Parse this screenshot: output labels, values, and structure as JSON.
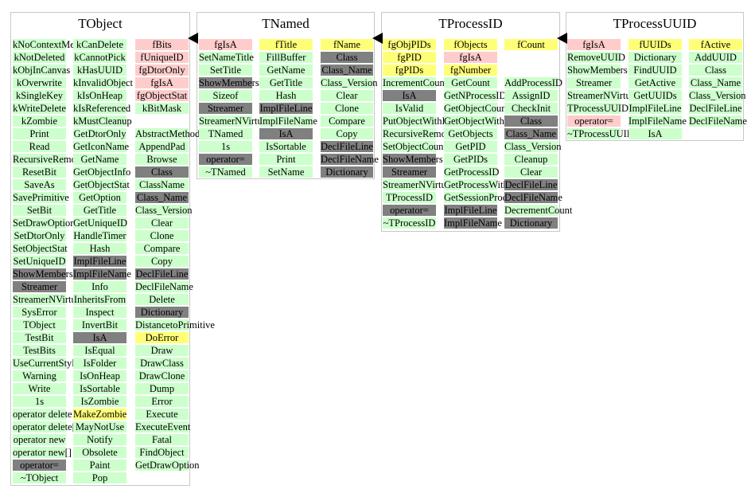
{
  "classes": [
    {
      "name": "TObject",
      "columns": [
        [
          {
            "t": "kNoContextMenu",
            "k": "method"
          },
          {
            "t": "kNotDeleted",
            "k": "method"
          },
          {
            "t": "kObjInCanvas",
            "k": "method"
          },
          {
            "t": "kOverwrite",
            "k": "method"
          },
          {
            "t": "kSingleKey",
            "k": "method"
          },
          {
            "t": "kWriteDelete",
            "k": "method"
          },
          {
            "t": "kZombie",
            "k": "method"
          },
          {
            "t": "Print",
            "k": "method"
          },
          {
            "t": "Read",
            "k": "method"
          },
          {
            "t": "RecursiveRemove",
            "k": "method"
          },
          {
            "t": "ResetBit",
            "k": "method"
          },
          {
            "t": "SaveAs",
            "k": "method"
          },
          {
            "t": "SavePrimitive",
            "k": "method"
          },
          {
            "t": "SetBit",
            "k": "method"
          },
          {
            "t": "SetDrawOption",
            "k": "method"
          },
          {
            "t": "SetDtorOnly",
            "k": "method"
          },
          {
            "t": "SetObjectStat",
            "k": "method"
          },
          {
            "t": "SetUniqueID",
            "k": "method"
          },
          {
            "t": "ShowMembers",
            "k": "inherit"
          },
          {
            "t": "Streamer",
            "k": "inherit"
          },
          {
            "t": "StreamerNVirtual",
            "k": "method"
          },
          {
            "t": "SysError",
            "k": "method"
          },
          {
            "t": "TObject",
            "k": "method"
          },
          {
            "t": "TestBit",
            "k": "method"
          },
          {
            "t": "TestBits",
            "k": "method"
          },
          {
            "t": "UseCurrentStyle",
            "k": "method"
          },
          {
            "t": "Warning",
            "k": "method"
          },
          {
            "t": "Write",
            "k": "method"
          },
          {
            "t": "1s",
            "k": "method"
          },
          {
            "t": "operator delete",
            "k": "method"
          },
          {
            "t": "operator delete[]",
            "k": "method"
          },
          {
            "t": "operator new",
            "k": "method"
          },
          {
            "t": "operator new[]",
            "k": "method"
          },
          {
            "t": "operator=",
            "k": "inherit"
          },
          {
            "t": "~TObject",
            "k": "method"
          }
        ],
        [
          {
            "t": "kCanDelete",
            "k": "method"
          },
          {
            "t": "kCannotPick",
            "k": "method"
          },
          {
            "t": "kHasUUID",
            "k": "method"
          },
          {
            "t": "kInvalidObject",
            "k": "method"
          },
          {
            "t": "kIsOnHeap",
            "k": "method"
          },
          {
            "t": "kIsReferenced",
            "k": "method"
          },
          {
            "t": "kMustCleanup",
            "k": "method"
          },
          {
            "t": "GetDtorOnly",
            "k": "method"
          },
          {
            "t": "GetIconName",
            "k": "method"
          },
          {
            "t": "GetName",
            "k": "method"
          },
          {
            "t": "GetObjectInfo",
            "k": "method"
          },
          {
            "t": "GetObjectStat",
            "k": "method"
          },
          {
            "t": "GetOption",
            "k": "method"
          },
          {
            "t": "GetTitle",
            "k": "method"
          },
          {
            "t": "GetUniqueID",
            "k": "method"
          },
          {
            "t": "HandleTimer",
            "k": "method"
          },
          {
            "t": "Hash",
            "k": "method"
          },
          {
            "t": "ImplFileLine",
            "k": "inherit"
          },
          {
            "t": "ImplFileName",
            "k": "inherit"
          },
          {
            "t": "Info",
            "k": "method"
          },
          {
            "t": "InheritsFrom",
            "k": "method"
          },
          {
            "t": "Inspect",
            "k": "method"
          },
          {
            "t": "InvertBit",
            "k": "method"
          },
          {
            "t": "IsA",
            "k": "inherit"
          },
          {
            "t": "IsEqual",
            "k": "method"
          },
          {
            "t": "IsFolder",
            "k": "method"
          },
          {
            "t": "IsOnHeap",
            "k": "method"
          },
          {
            "t": "IsSortable",
            "k": "method"
          },
          {
            "t": "IsZombie",
            "k": "method"
          },
          {
            "t": "MakeZombie",
            "k": "const"
          },
          {
            "t": "MayNotUse",
            "k": "method"
          },
          {
            "t": "Notify",
            "k": "method"
          },
          {
            "t": "Obsolete",
            "k": "method"
          },
          {
            "t": "Paint",
            "k": "method"
          },
          {
            "t": "Pop",
            "k": "method"
          }
        ],
        [
          {
            "t": "fBits",
            "k": "member"
          },
          {
            "t": "fUniqueID",
            "k": "member"
          },
          {
            "t": "fgDtorOnly",
            "k": "member"
          },
          {
            "t": "fgIsA",
            "k": "member"
          },
          {
            "t": "fgObjectStat",
            "k": "member"
          },
          {
            "t": "kBitMask",
            "k": "method"
          },
          {
            "t": "",
            "k": "blank"
          },
          {
            "t": "AbstractMethod",
            "k": "method"
          },
          {
            "t": "AppendPad",
            "k": "method"
          },
          {
            "t": "Browse",
            "k": "method"
          },
          {
            "t": "Class",
            "k": "inherit"
          },
          {
            "t": "ClassName",
            "k": "method"
          },
          {
            "t": "Class_Name",
            "k": "inherit"
          },
          {
            "t": "Class_Version",
            "k": "method"
          },
          {
            "t": "Clear",
            "k": "method"
          },
          {
            "t": "Clone",
            "k": "method"
          },
          {
            "t": "Compare",
            "k": "method"
          },
          {
            "t": "Copy",
            "k": "method"
          },
          {
            "t": "DeclFileLine",
            "k": "inherit"
          },
          {
            "t": "DeclFileName",
            "k": "method"
          },
          {
            "t": "Delete",
            "k": "method"
          },
          {
            "t": "Dictionary",
            "k": "inherit"
          },
          {
            "t": "DistancetoPrimitive",
            "k": "method"
          },
          {
            "t": "DoError",
            "k": "const"
          },
          {
            "t": "Draw",
            "k": "method"
          },
          {
            "t": "DrawClass",
            "k": "method"
          },
          {
            "t": "DrawClone",
            "k": "method"
          },
          {
            "t": "Dump",
            "k": "method"
          },
          {
            "t": "Error",
            "k": "method"
          },
          {
            "t": "Execute",
            "k": "method"
          },
          {
            "t": "ExecuteEvent",
            "k": "method"
          },
          {
            "t": "Fatal",
            "k": "method"
          },
          {
            "t": "FindObject",
            "k": "method"
          },
          {
            "t": "GetDrawOption",
            "k": "method"
          }
        ]
      ]
    },
    {
      "name": "TNamed",
      "columns": [
        [
          {
            "t": "fgIsA",
            "k": "member"
          },
          {
            "t": "SetNameTitle",
            "k": "method"
          },
          {
            "t": "SetTitle",
            "k": "method"
          },
          {
            "t": "ShowMembers",
            "k": "inherit"
          },
          {
            "t": "Sizeof",
            "k": "method"
          },
          {
            "t": "Streamer",
            "k": "inherit"
          },
          {
            "t": "StreamerNVirtual",
            "k": "method"
          },
          {
            "t": "TNamed",
            "k": "method"
          },
          {
            "t": "1s",
            "k": "method"
          },
          {
            "t": "operator=",
            "k": "inherit"
          },
          {
            "t": "~TNamed",
            "k": "method"
          }
        ],
        [
          {
            "t": "fTitle",
            "k": "const"
          },
          {
            "t": "FillBuffer",
            "k": "method"
          },
          {
            "t": "GetName",
            "k": "method"
          },
          {
            "t": "GetTitle",
            "k": "method"
          },
          {
            "t": "Hash",
            "k": "method"
          },
          {
            "t": "ImplFileLine",
            "k": "inherit"
          },
          {
            "t": "ImplFileName",
            "k": "method"
          },
          {
            "t": "IsA",
            "k": "inherit"
          },
          {
            "t": "IsSortable",
            "k": "method"
          },
          {
            "t": "Print",
            "k": "method"
          },
          {
            "t": "SetName",
            "k": "method"
          }
        ],
        [
          {
            "t": "fName",
            "k": "const"
          },
          {
            "t": "Class",
            "k": "inherit"
          },
          {
            "t": "Class_Name",
            "k": "inherit"
          },
          {
            "t": "Class_Version",
            "k": "method"
          },
          {
            "t": "Clear",
            "k": "method"
          },
          {
            "t": "Clone",
            "k": "method"
          },
          {
            "t": "Compare",
            "k": "method"
          },
          {
            "t": "Copy",
            "k": "method"
          },
          {
            "t": "DeclFileLine",
            "k": "inherit"
          },
          {
            "t": "DeclFileName",
            "k": "inherit"
          },
          {
            "t": "Dictionary",
            "k": "inherit"
          }
        ]
      ]
    },
    {
      "name": "TProcessID",
      "columns": [
        [
          {
            "t": "fgObjPIDs",
            "k": "const"
          },
          {
            "t": "fgPID",
            "k": "const"
          },
          {
            "t": "fgPIDs",
            "k": "const"
          },
          {
            "t": "IncrementCount",
            "k": "method"
          },
          {
            "t": "IsA",
            "k": "inherit"
          },
          {
            "t": "IsValid",
            "k": "method"
          },
          {
            "t": "PutObjectWithID",
            "k": "method"
          },
          {
            "t": "RecursiveRemove",
            "k": "method"
          },
          {
            "t": "SetObjectCount",
            "k": "method"
          },
          {
            "t": "ShowMembers",
            "k": "inherit"
          },
          {
            "t": "Streamer",
            "k": "inherit"
          },
          {
            "t": "StreamerNVirtual",
            "k": "method"
          },
          {
            "t": "TProcessID",
            "k": "method"
          },
          {
            "t": "operator=",
            "k": "inherit"
          },
          {
            "t": "~TProcessID",
            "k": "method"
          }
        ],
        [
          {
            "t": "fObjects",
            "k": "const"
          },
          {
            "t": "fgIsA",
            "k": "member"
          },
          {
            "t": "fgNumber",
            "k": "const"
          },
          {
            "t": "GetCount",
            "k": "method"
          },
          {
            "t": "GetNProcessIDs",
            "k": "method"
          },
          {
            "t": "GetObjectCount",
            "k": "method"
          },
          {
            "t": "GetObjectWithID",
            "k": "method"
          },
          {
            "t": "GetObjects",
            "k": "method"
          },
          {
            "t": "GetPID",
            "k": "method"
          },
          {
            "t": "GetPIDs",
            "k": "method"
          },
          {
            "t": "GetProcessID",
            "k": "method"
          },
          {
            "t": "GetProcessWithUID",
            "k": "method"
          },
          {
            "t": "GetSessionProcessID",
            "k": "method"
          },
          {
            "t": "ImplFileLine",
            "k": "inherit"
          },
          {
            "t": "ImplFileName",
            "k": "inherit"
          }
        ],
        [
          {
            "t": "fCount",
            "k": "const"
          },
          {
            "t": "",
            "k": "blank"
          },
          {
            "t": "",
            "k": "blank"
          },
          {
            "t": "AddProcessID",
            "k": "method"
          },
          {
            "t": "AssignID",
            "k": "method"
          },
          {
            "t": "CheckInit",
            "k": "method"
          },
          {
            "t": "Class",
            "k": "inherit"
          },
          {
            "t": "Class_Name",
            "k": "inherit"
          },
          {
            "t": "Class_Version",
            "k": "method"
          },
          {
            "t": "Cleanup",
            "k": "method"
          },
          {
            "t": "Clear",
            "k": "method"
          },
          {
            "t": "DeclFileLine",
            "k": "inherit"
          },
          {
            "t": "DeclFileName",
            "k": "inherit"
          },
          {
            "t": "DecrementCount",
            "k": "method"
          },
          {
            "t": "Dictionary",
            "k": "inherit"
          }
        ]
      ]
    },
    {
      "name": "TProcessUUID",
      "columns": [
        [
          {
            "t": "fgIsA",
            "k": "member"
          },
          {
            "t": "RemoveUUID",
            "k": "method"
          },
          {
            "t": "ShowMembers",
            "k": "method"
          },
          {
            "t": "Streamer",
            "k": "method"
          },
          {
            "t": "StreamerNVirtual",
            "k": "method"
          },
          {
            "t": "TProcessUUID",
            "k": "method"
          },
          {
            "t": "operator=",
            "k": "member"
          },
          {
            "t": "~TProcessUUID",
            "k": "method"
          }
        ],
        [
          {
            "t": "fUUIDs",
            "k": "const"
          },
          {
            "t": "Dictionary",
            "k": "method"
          },
          {
            "t": "FindUUID",
            "k": "method"
          },
          {
            "t": "GetActive",
            "k": "method"
          },
          {
            "t": "GetUUIDs",
            "k": "method"
          },
          {
            "t": "ImplFileLine",
            "k": "method"
          },
          {
            "t": "ImplFileName",
            "k": "method"
          },
          {
            "t": "IsA",
            "k": "method"
          }
        ],
        [
          {
            "t": "fActive",
            "k": "const"
          },
          {
            "t": "AddUUID",
            "k": "method"
          },
          {
            "t": "Class",
            "k": "method"
          },
          {
            "t": "Class_Name",
            "k": "method"
          },
          {
            "t": "Class_Version",
            "k": "method"
          },
          {
            "t": "DeclFileLine",
            "k": "method"
          },
          {
            "t": "DeclFileName",
            "k": "method"
          }
        ]
      ]
    }
  ],
  "colors": {
    "method": "#ccffcc",
    "member": "#ffcccc",
    "const": "#ffff77",
    "inherit": "#808080",
    "border": "#c8c8c8"
  }
}
